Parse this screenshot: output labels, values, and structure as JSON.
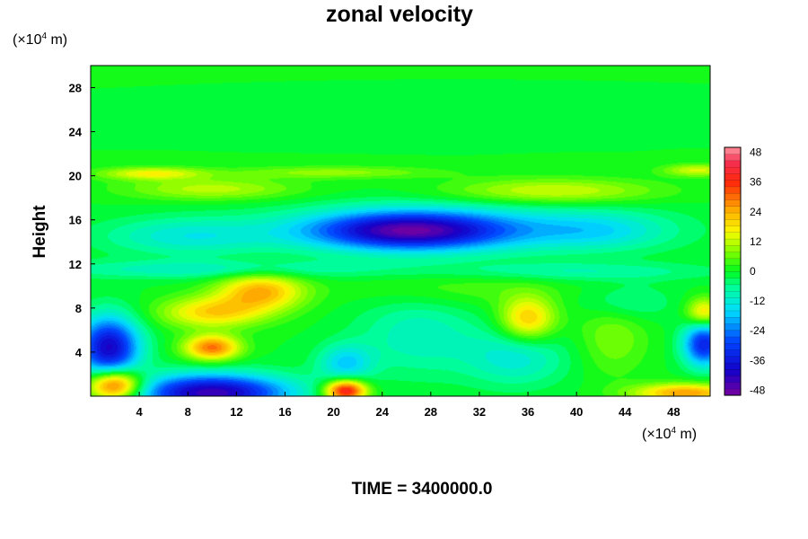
{
  "chart_data": {
    "type": "heatmap",
    "title": "zonal velocity",
    "ylabel": "Height",
    "xlabel": "",
    "x_unit": "(×10⁴ m)",
    "y_unit": "(×10⁴ m)",
    "x_unit_prefix": "(×10",
    "x_unit_exp": "4",
    "x_unit_suffix": " m)",
    "y_unit_prefix": "(×10",
    "y_unit_exp": "4",
    "y_unit_suffix": " m)",
    "xlim": [
      0,
      51
    ],
    "ylim": [
      0,
      30
    ],
    "xticks": [
      4,
      8,
      12,
      16,
      20,
      24,
      28,
      32,
      36,
      40,
      44,
      48
    ],
    "yticks": [
      4,
      8,
      12,
      16,
      20,
      24,
      28
    ],
    "colorbar": {
      "range": [
        -50,
        50
      ],
      "ticks": [
        48,
        36,
        24,
        12,
        0,
        -12,
        -24,
        -36,
        -48
      ],
      "levels": 38
    },
    "background_value": 0,
    "features": [
      {
        "x": 26,
        "y": 15,
        "sx": 5.5,
        "sy": 1.2,
        "v": -36
      },
      {
        "x": 30,
        "y": 15.2,
        "sx": 10,
        "sy": 1.6,
        "v": -14
      },
      {
        "x": 8,
        "y": 14.5,
        "sx": 5,
        "sy": 1.2,
        "v": -12
      },
      {
        "x": 42,
        "y": 15,
        "sx": 4,
        "sy": 1.2,
        "v": -10
      },
      {
        "x": 38,
        "y": 18.6,
        "sx": 6,
        "sy": 0.8,
        "v": 14
      },
      {
        "x": 10,
        "y": 18.8,
        "sx": 5,
        "sy": 0.7,
        "v": 12
      },
      {
        "x": 5,
        "y": 20.2,
        "sx": 3,
        "sy": 0.4,
        "v": 16
      },
      {
        "x": 50,
        "y": 20.5,
        "sx": 2,
        "sy": 0.4,
        "v": 14
      },
      {
        "x": 20,
        "y": 20.3,
        "sx": 6,
        "sy": 0.4,
        "v": 9
      },
      {
        "x": 10,
        "y": 11.5,
        "sx": 10,
        "sy": 0.6,
        "v": -10
      },
      {
        "x": 40,
        "y": 11.3,
        "sx": 8,
        "sy": 0.6,
        "v": -8
      },
      {
        "x": 14,
        "y": 9.5,
        "sx": 2.5,
        "sy": 1.2,
        "v": 24
      },
      {
        "x": 10,
        "y": 7.6,
        "sx": 3,
        "sy": 1.0,
        "v": 20
      },
      {
        "x": 10,
        "y": 4.4,
        "sx": 1.6,
        "sy": 0.8,
        "v": 30
      },
      {
        "x": 1.5,
        "y": 4.4,
        "sx": 1.8,
        "sy": 2.0,
        "v": -40
      },
      {
        "x": 2,
        "y": 1.0,
        "sx": 1.6,
        "sy": 1.0,
        "v": 42
      },
      {
        "x": 10,
        "y": 0.3,
        "sx": 4.5,
        "sy": 1.2,
        "v": -44
      },
      {
        "x": 21,
        "y": 0.5,
        "sx": 1.2,
        "sy": 0.7,
        "v": 42
      },
      {
        "x": 36,
        "y": 7,
        "sx": 1.6,
        "sy": 1.4,
        "v": 22
      },
      {
        "x": 43,
        "y": 5.5,
        "sx": 2,
        "sy": 2.5,
        "v": 8
      },
      {
        "x": 50.5,
        "y": 4.7,
        "sx": 1.2,
        "sy": 1.4,
        "v": -34
      },
      {
        "x": 50.5,
        "y": 7.6,
        "sx": 1.0,
        "sy": 0.9,
        "v": 20
      },
      {
        "x": 49,
        "y": 0.3,
        "sx": 3,
        "sy": 0.6,
        "v": 26
      },
      {
        "x": 35,
        "y": 3.5,
        "sx": 3,
        "sy": 1.8,
        "v": -12
      },
      {
        "x": 27,
        "y": 5.5,
        "sx": 3.5,
        "sy": 2.5,
        "v": -10
      },
      {
        "x": 21,
        "y": 3.0,
        "sx": 1.6,
        "sy": 1.2,
        "v": -16
      },
      {
        "x": 44,
        "y": 8.5,
        "sx": 2.5,
        "sy": 1.2,
        "v": -8
      },
      {
        "x": 30,
        "y": 9.8,
        "sx": 6,
        "sy": 1.2,
        "v": 5
      }
    ],
    "footer_label": "TIME = 3400000.0"
  }
}
